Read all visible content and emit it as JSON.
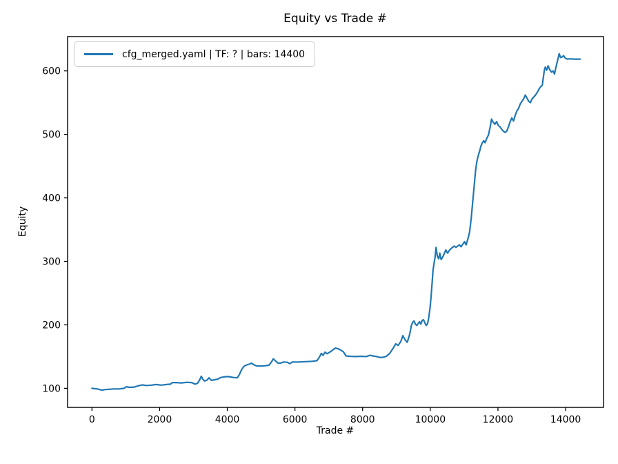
{
  "figure": {
    "title": "Equity vs Trade #",
    "xlabel": "Trade #",
    "ylabel": "Equity",
    "background": "#ffffff"
  },
  "legend": {
    "label": "cfg_merged.yaml | TF: ? | bars: 14400",
    "line_color": "#1f77b4",
    "position": "upper left"
  },
  "chart_data": {
    "type": "line",
    "title": "Equity vs Trade #",
    "xlabel": "Trade #",
    "ylabel": "Equity",
    "xlim": [
      -720,
      15120
    ],
    "ylim": [
      70,
      654
    ],
    "x_ticks": [
      0,
      2000,
      4000,
      6000,
      8000,
      10000,
      12000,
      14000
    ],
    "y_ticks": [
      100,
      200,
      300,
      400,
      500,
      600
    ],
    "grid": false,
    "axes_color": "#000000",
    "series": [
      {
        "name": "cfg_merged.yaml | TF: ? | bars: 14400",
        "color": "#1f77b4",
        "points": [
          [
            0,
            100
          ],
          [
            80,
            99.5
          ],
          [
            160,
            99
          ],
          [
            240,
            98
          ],
          [
            300,
            97
          ],
          [
            360,
            98
          ],
          [
            500,
            98.5
          ],
          [
            650,
            99
          ],
          [
            800,
            99
          ],
          [
            950,
            100
          ],
          [
            1020,
            102.5
          ],
          [
            1100,
            101.5
          ],
          [
            1250,
            102
          ],
          [
            1400,
            104.5
          ],
          [
            1500,
            105.5
          ],
          [
            1600,
            104.5
          ],
          [
            1750,
            105
          ],
          [
            1900,
            106
          ],
          [
            2050,
            105
          ],
          [
            2200,
            106
          ],
          [
            2320,
            106.5
          ],
          [
            2370,
            109
          ],
          [
            2500,
            109
          ],
          [
            2650,
            108.5
          ],
          [
            2800,
            109.5
          ],
          [
            2950,
            109
          ],
          [
            3050,
            106.5
          ],
          [
            3120,
            108
          ],
          [
            3180,
            113
          ],
          [
            3230,
            119
          ],
          [
            3280,
            114
          ],
          [
            3330,
            111.5
          ],
          [
            3400,
            113
          ],
          [
            3460,
            116.5
          ],
          [
            3530,
            112.5
          ],
          [
            3620,
            113.5
          ],
          [
            3720,
            114.5
          ],
          [
            3800,
            117
          ],
          [
            3900,
            118
          ],
          [
            4000,
            118.5
          ],
          [
            4100,
            118
          ],
          [
            4200,
            117
          ],
          [
            4290,
            116.5
          ],
          [
            4360,
            122
          ],
          [
            4420,
            129
          ],
          [
            4480,
            134
          ],
          [
            4550,
            136.5
          ],
          [
            4640,
            138
          ],
          [
            4720,
            139.5
          ],
          [
            4790,
            137
          ],
          [
            4860,
            135.5
          ],
          [
            4960,
            135
          ],
          [
            5100,
            135.5
          ],
          [
            5230,
            136.5
          ],
          [
            5300,
            141
          ],
          [
            5360,
            146.5
          ],
          [
            5430,
            143
          ],
          [
            5490,
            140
          ],
          [
            5560,
            139.5
          ],
          [
            5660,
            141.5
          ],
          [
            5770,
            141
          ],
          [
            5850,
            139
          ],
          [
            5920,
            141.5
          ],
          [
            6100,
            141.5
          ],
          [
            6300,
            142
          ],
          [
            6500,
            142.5
          ],
          [
            6650,
            143.5
          ],
          [
            6720,
            149
          ],
          [
            6780,
            155
          ],
          [
            6830,
            152
          ],
          [
            6890,
            157
          ],
          [
            6950,
            154.5
          ],
          [
            7060,
            158
          ],
          [
            7130,
            161
          ],
          [
            7200,
            163.5
          ],
          [
            7290,
            162
          ],
          [
            7360,
            160
          ],
          [
            7430,
            157.5
          ],
          [
            7510,
            151
          ],
          [
            7620,
            150.5
          ],
          [
            7780,
            150
          ],
          [
            7950,
            150.5
          ],
          [
            8100,
            150
          ],
          [
            8220,
            152
          ],
          [
            8300,
            151
          ],
          [
            8420,
            150
          ],
          [
            8530,
            148.5
          ],
          [
            8610,
            149
          ],
          [
            8700,
            150.5
          ],
          [
            8800,
            155
          ],
          [
            8900,
            163
          ],
          [
            8980,
            170
          ],
          [
            9050,
            167.5
          ],
          [
            9130,
            174
          ],
          [
            9190,
            183
          ],
          [
            9260,
            176
          ],
          [
            9320,
            172.5
          ],
          [
            9390,
            185
          ],
          [
            9420,
            193
          ],
          [
            9440,
            199
          ],
          [
            9480,
            204
          ],
          [
            9520,
            206
          ],
          [
            9560,
            201
          ],
          [
            9600,
            199
          ],
          [
            9640,
            202
          ],
          [
            9680,
            205
          ],
          [
            9720,
            201
          ],
          [
            9760,
            207
          ],
          [
            9800,
            208
          ],
          [
            9840,
            203
          ],
          [
            9880,
            199
          ],
          [
            9920,
            202
          ],
          [
            9950,
            210
          ],
          [
            9990,
            226
          ],
          [
            10020,
            242
          ],
          [
            10050,
            263
          ],
          [
            10080,
            286
          ],
          [
            10110,
            296
          ],
          [
            10140,
            306
          ],
          [
            10170,
            322
          ],
          [
            10210,
            308
          ],
          [
            10250,
            304
          ],
          [
            10280,
            313
          ],
          [
            10320,
            303
          ],
          [
            10360,
            306
          ],
          [
            10410,
            312
          ],
          [
            10460,
            318
          ],
          [
            10510,
            313
          ],
          [
            10560,
            317
          ],
          [
            10610,
            320
          ],
          [
            10660,
            322
          ],
          [
            10710,
            324
          ],
          [
            10760,
            322
          ],
          [
            10810,
            324
          ],
          [
            10860,
            326
          ],
          [
            10910,
            323
          ],
          [
            10960,
            327
          ],
          [
            11010,
            331
          ],
          [
            11060,
            326
          ],
          [
            11110,
            335
          ],
          [
            11160,
            346
          ],
          [
            11210,
            368
          ],
          [
            11260,
            398
          ],
          [
            11300,
            420
          ],
          [
            11340,
            444
          ],
          [
            11380,
            458
          ],
          [
            11420,
            467
          ],
          [
            11460,
            474
          ],
          [
            11500,
            482
          ],
          [
            11540,
            487
          ],
          [
            11580,
            490
          ],
          [
            11620,
            487
          ],
          [
            11670,
            494
          ],
          [
            11720,
            499
          ],
          [
            11770,
            512
          ],
          [
            11810,
            524
          ],
          [
            11860,
            519
          ],
          [
            11910,
            516
          ],
          [
            11960,
            520
          ],
          [
            12010,
            514
          ],
          [
            12060,
            512
          ],
          [
            12110,
            508
          ],
          [
            12160,
            505
          ],
          [
            12210,
            503
          ],
          [
            12260,
            505
          ],
          [
            12310,
            512
          ],
          [
            12360,
            520
          ],
          [
            12410,
            526
          ],
          [
            12460,
            521
          ],
          [
            12510,
            530
          ],
          [
            12560,
            537
          ],
          [
            12610,
            541
          ],
          [
            12660,
            548
          ],
          [
            12710,
            552
          ],
          [
            12760,
            556
          ],
          [
            12810,
            562
          ],
          [
            12860,
            557
          ],
          [
            12910,
            552
          ],
          [
            12960,
            550
          ],
          [
            13010,
            556
          ],
          [
            13060,
            559
          ],
          [
            13110,
            562
          ],
          [
            13160,
            566
          ],
          [
            13210,
            571
          ],
          [
            13260,
            575
          ],
          [
            13310,
            577
          ],
          [
            13370,
            601
          ],
          [
            13400,
            606
          ],
          [
            13440,
            601
          ],
          [
            13480,
            608
          ],
          [
            13530,
            602
          ],
          [
            13580,
            598
          ],
          [
            13630,
            600
          ],
          [
            13670,
            595
          ],
          [
            13720,
            607
          ],
          [
            13770,
            618
          ],
          [
            13810,
            627
          ],
          [
            13850,
            621
          ],
          [
            13900,
            622
          ],
          [
            13940,
            624
          ],
          [
            13990,
            620
          ],
          [
            14050,
            618.5
          ],
          [
            14150,
            619
          ],
          [
            14250,
            618.5
          ],
          [
            14350,
            618.5
          ],
          [
            14430,
            618.5
          ]
        ]
      }
    ]
  }
}
